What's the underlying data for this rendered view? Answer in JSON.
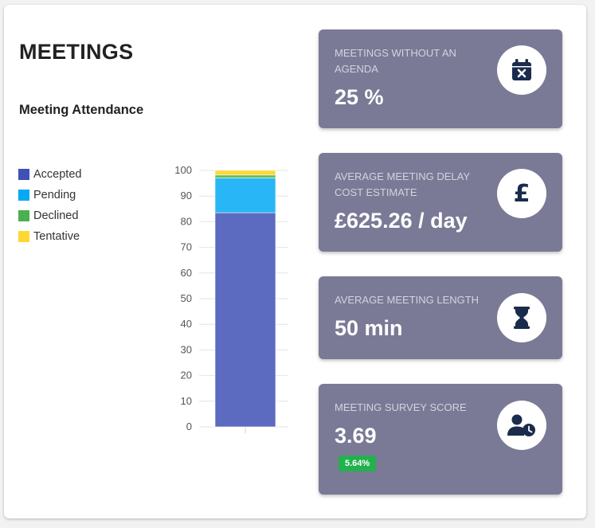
{
  "header": {
    "title": "MEETINGS",
    "subtitle": "Meeting Attendance"
  },
  "legend": [
    {
      "label": "Accepted",
      "color": "#3f51b5"
    },
    {
      "label": "Pending",
      "color": "#03a9f4"
    },
    {
      "label": "Declined",
      "color": "#4caf50"
    },
    {
      "label": "Tentative",
      "color": "#fdd835"
    }
  ],
  "chart_data": {
    "type": "bar",
    "stacked": true,
    "categories": [
      ""
    ],
    "series": [
      {
        "name": "Accepted",
        "values": [
          83.5
        ],
        "color": "#5c6bc0"
      },
      {
        "name": "Pending",
        "values": [
          13.5
        ],
        "color": "#29b6f6"
      },
      {
        "name": "Declined",
        "values": [
          1.2
        ],
        "color": "#66bb6a"
      },
      {
        "name": "Tentative",
        "values": [
          1.8
        ],
        "color": "#fdd835"
      }
    ],
    "ylim": [
      0,
      100
    ],
    "yticks": [
      "0",
      "10",
      "20",
      "30",
      "40",
      "50",
      "60",
      "70",
      "80",
      "90",
      "100"
    ],
    "grid": true,
    "legend_position": "left"
  },
  "tiles": [
    {
      "label": "MEETINGS WITHOUT AN AGENDA",
      "value": "25 %",
      "icon": "calendar-x-icon"
    },
    {
      "label": "AVERAGE MEETING DELAY COST ESTIMATE",
      "value": "£625.26 / day",
      "icon": "pound-icon"
    },
    {
      "label": "AVERAGE MEETING LENGTH",
      "value": "50 min",
      "icon": "hourglass-icon"
    },
    {
      "label": "MEETING SURVEY SCORE",
      "value": "3.69",
      "badge": "5.64%",
      "badge_color": "#22b14c",
      "icon": "user-clock-icon"
    }
  ],
  "colors": {
    "tile_bg": "#7a7a97",
    "icon_fg": "#1a2b4c"
  }
}
